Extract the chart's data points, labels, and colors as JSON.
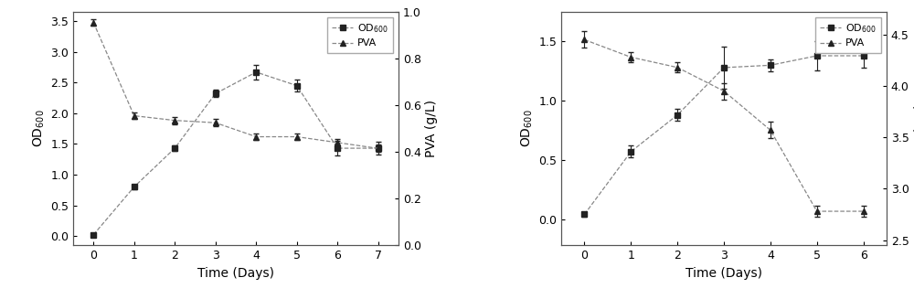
{
  "chart1": {
    "od_x": [
      0,
      1,
      2,
      3,
      4,
      5,
      6,
      7
    ],
    "od_y": [
      0.02,
      0.8,
      1.43,
      2.32,
      2.67,
      2.45,
      1.43,
      1.43
    ],
    "od_yerr": [
      0.02,
      0.04,
      0.05,
      0.06,
      0.12,
      0.1,
      0.12,
      0.1
    ],
    "pva_x": [
      0,
      1,
      2,
      3,
      4,
      5,
      6,
      7
    ],
    "pva_y": [
      0.955,
      0.555,
      0.535,
      0.525,
      0.465,
      0.465,
      0.44,
      0.415
    ],
    "pva_yerr": [
      0.015,
      0.015,
      0.015,
      0.015,
      0.015,
      0.015,
      0.015,
      0.015
    ],
    "xlabel": "Time (Days)",
    "ylabel_left": "OD$_{600}$",
    "ylabel_right": "PVA (g/L)",
    "xticks": [
      0,
      1,
      2,
      3,
      4,
      5,
      6,
      7
    ],
    "yticks_left": [
      0.0,
      0.5,
      1.0,
      1.5,
      2.0,
      2.5,
      3.0,
      3.5
    ],
    "yticks_right": [
      0.0,
      0.2,
      0.4,
      0.6,
      0.8,
      1.0
    ],
    "od_label": "OD$_{600}$",
    "pva_label": "PVA",
    "od_ylim": [
      -0.15,
      3.65
    ],
    "pva_ylim": [
      0.0,
      1.0
    ]
  },
  "chart2": {
    "od_x": [
      0,
      1,
      2,
      3,
      4,
      5,
      6
    ],
    "od_y": [
      0.04,
      0.57,
      0.88,
      1.28,
      1.3,
      1.38,
      1.38
    ],
    "od_yerr": [
      0.02,
      0.05,
      0.05,
      0.18,
      0.05,
      0.12,
      0.1
    ],
    "pva_x": [
      0,
      1,
      2,
      3,
      4,
      5,
      6
    ],
    "pva_y": [
      4.45,
      4.28,
      4.18,
      3.95,
      3.57,
      2.78,
      2.78
    ],
    "pva_yerr": [
      0.08,
      0.05,
      0.05,
      0.08,
      0.08,
      0.05,
      0.05
    ],
    "xlabel": "Time (Days)",
    "ylabel_left": "OD$_{600}$",
    "ylabel_right": "PVA(g/L)",
    "xticks": [
      0,
      1,
      2,
      3,
      4,
      5,
      6
    ],
    "yticks_left": [
      0.0,
      0.5,
      1.0,
      1.5
    ],
    "yticks_right": [
      2.5,
      3.0,
      3.5,
      4.0,
      4.5
    ],
    "od_label": "OD$_{600}$",
    "pva_label": "PVA",
    "od_ylim": [
      -0.22,
      1.75
    ],
    "pva_ylim": [
      2.45,
      4.72
    ]
  },
  "bg_color": "#ffffff",
  "line_color": "#888888",
  "marker_color": "#222222",
  "figsize": [
    10.0,
    3.27
  ],
  "dpi": 100,
  "font_size_label": 10,
  "font_size_tick": 9,
  "font_size_legend": 8
}
